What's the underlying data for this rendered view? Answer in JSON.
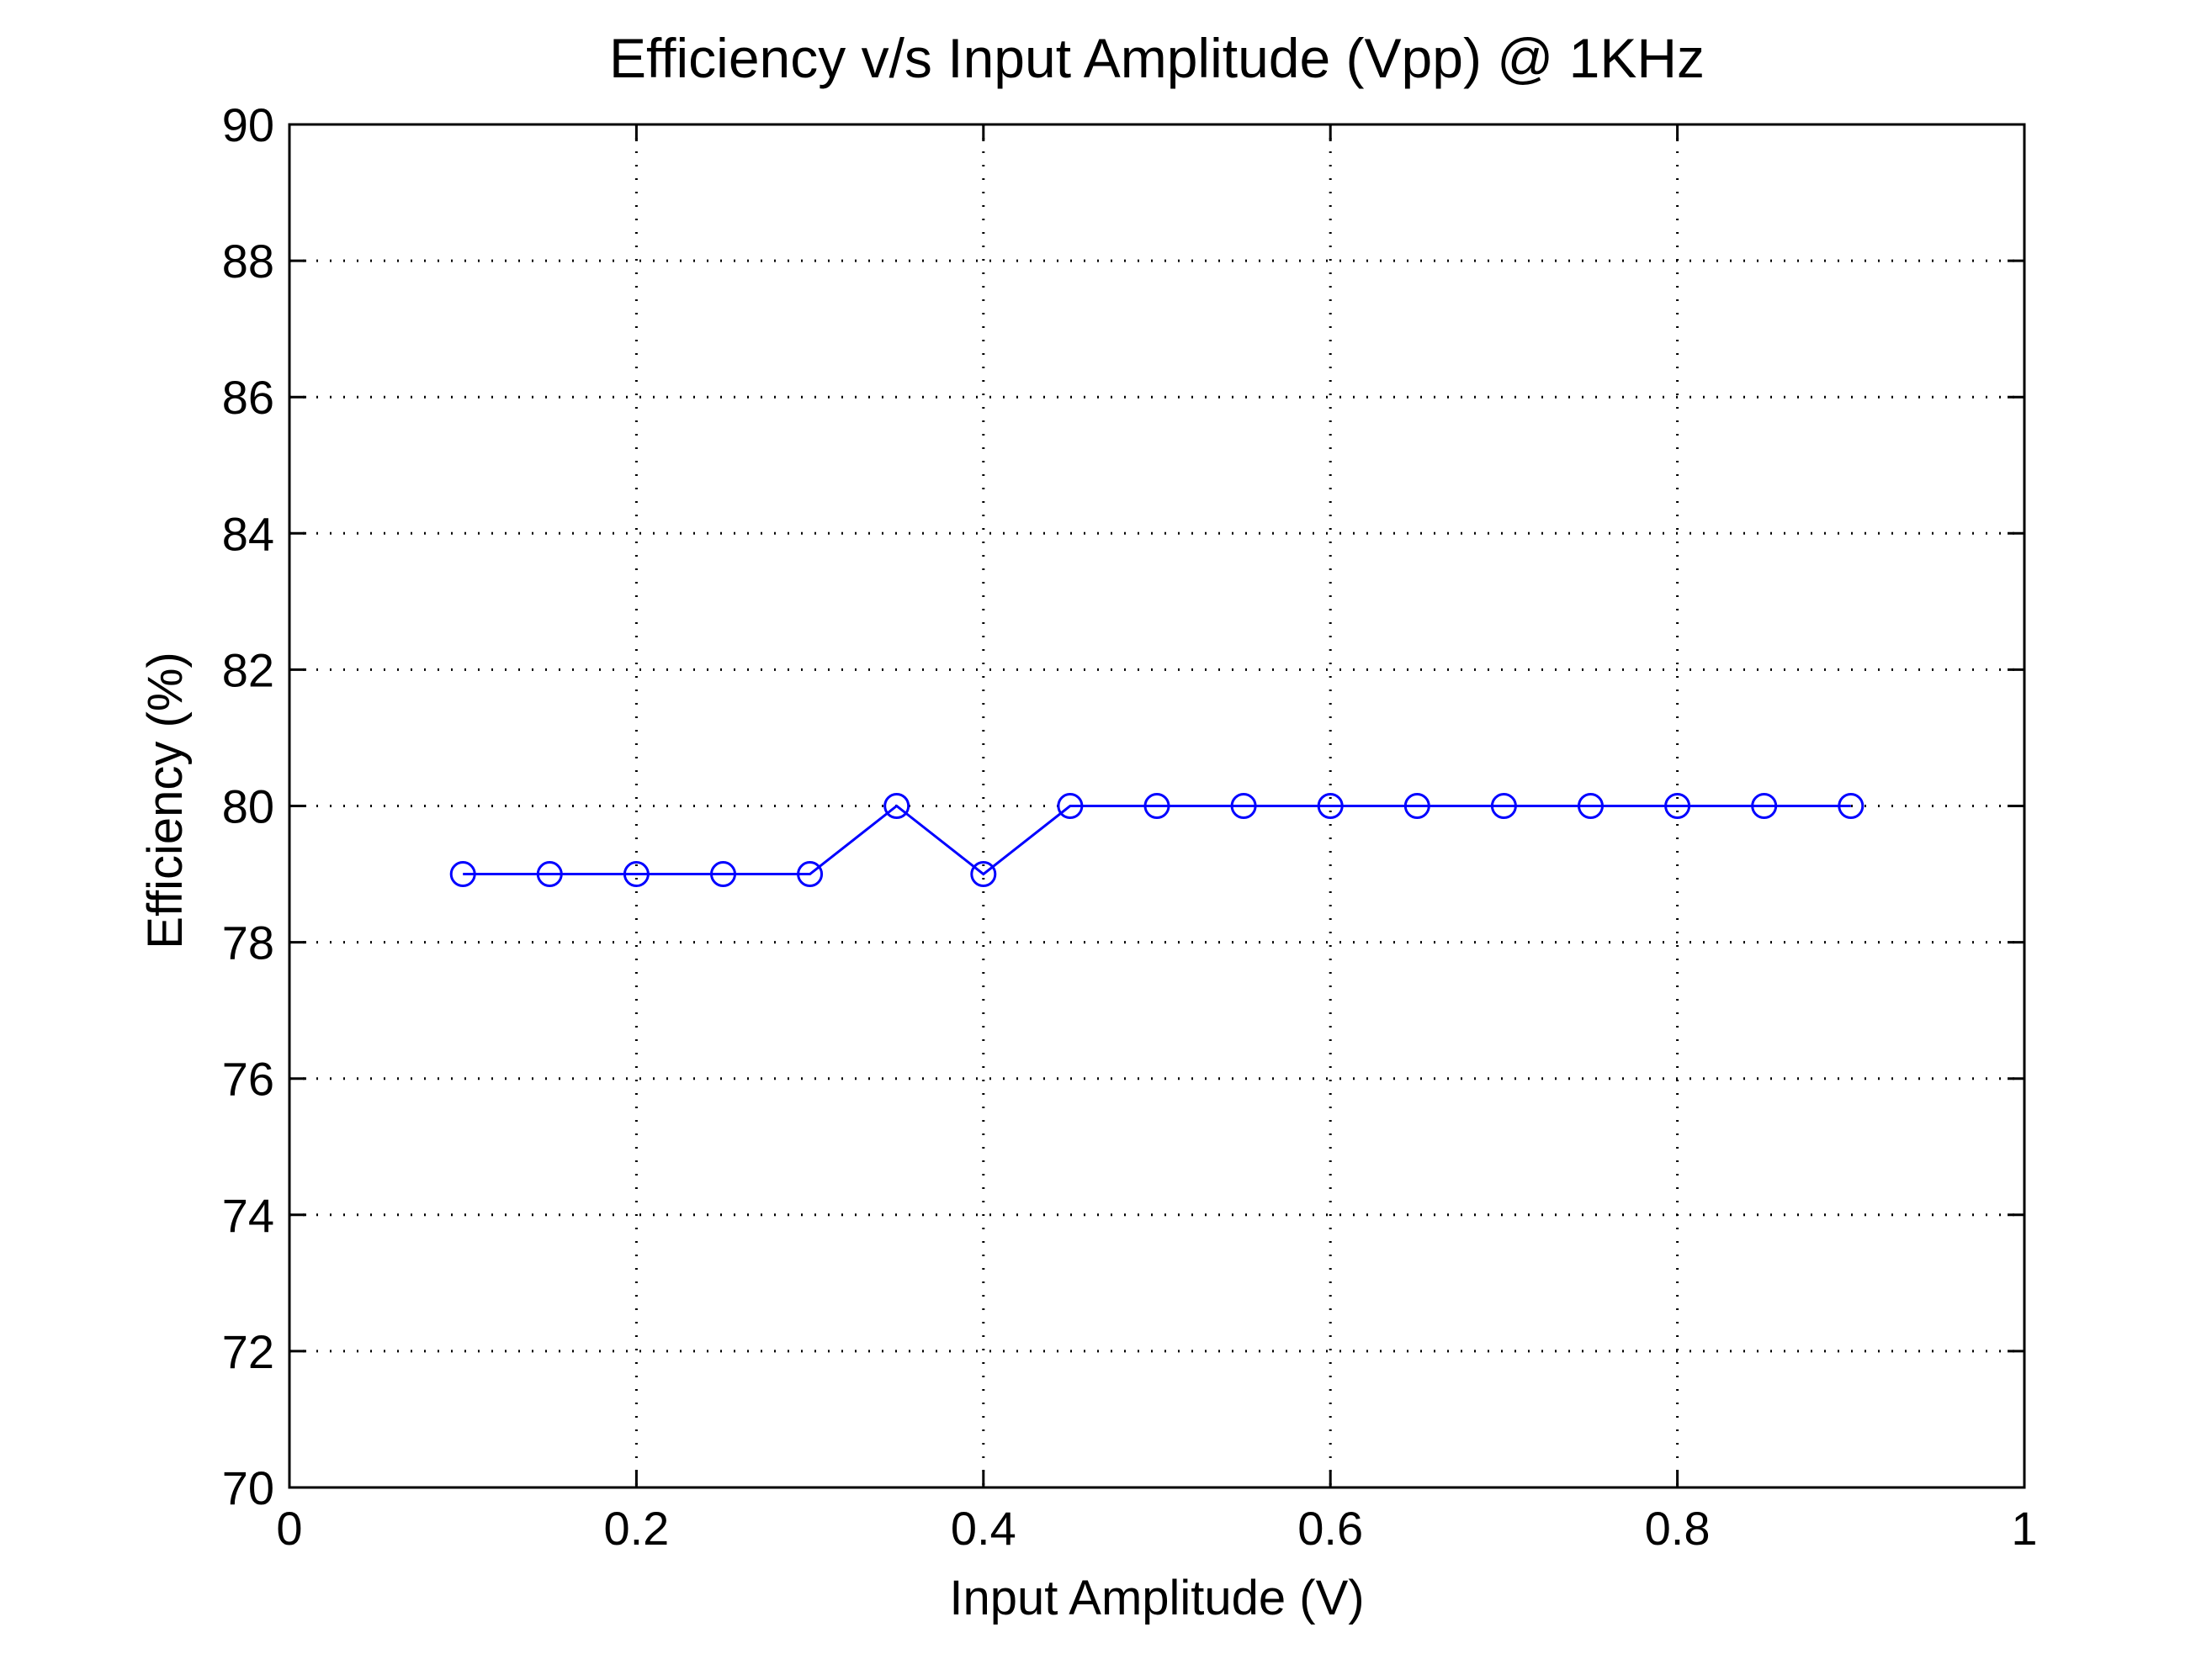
{
  "chart_data": {
    "type": "line",
    "title": "Efficiency v/s Input Amplitude (Vpp) @ 1KHz",
    "xlabel": "Input Amplitude (V)",
    "ylabel": "Efficiency (%)",
    "xlim": [
      0,
      1
    ],
    "ylim": [
      70,
      90
    ],
    "x_ticks": [
      0,
      0.2,
      0.4,
      0.6,
      0.8,
      1
    ],
    "x_tick_labels": [
      "0",
      "0.2",
      "0.4",
      "0.6",
      "0.8",
      "1"
    ],
    "y_ticks": [
      70,
      72,
      74,
      76,
      78,
      80,
      82,
      84,
      86,
      88,
      90
    ],
    "y_tick_labels": [
      "70",
      "72",
      "74",
      "76",
      "78",
      "80",
      "82",
      "84",
      "86",
      "88",
      "90"
    ],
    "grid": true,
    "legend": "none",
    "series": [
      {
        "color": "#0000ff",
        "marker": "circle-open",
        "x": [
          0.1,
          0.15,
          0.2,
          0.25,
          0.3,
          0.35,
          0.4,
          0.45,
          0.5,
          0.55,
          0.6,
          0.65,
          0.7,
          0.75,
          0.8,
          0.85,
          0.9
        ],
        "y": [
          79,
          79,
          79,
          79,
          79,
          80,
          79,
          80,
          80,
          80,
          80,
          80,
          80,
          80,
          80,
          80,
          80
        ]
      }
    ]
  }
}
